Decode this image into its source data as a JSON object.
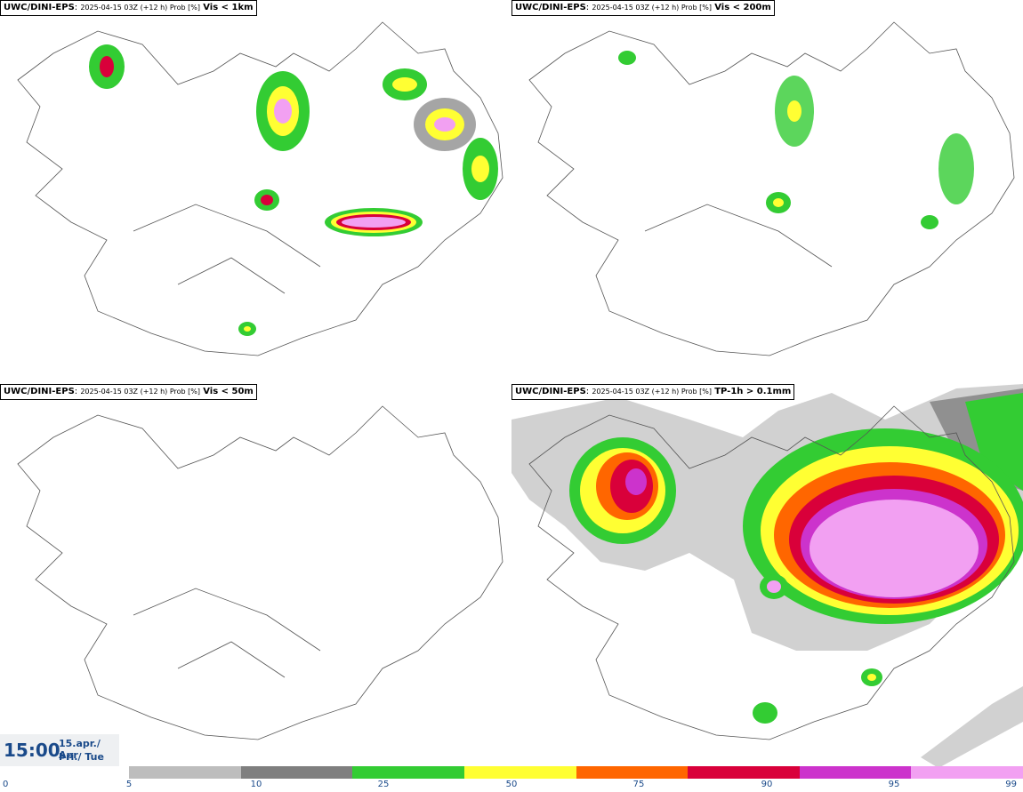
{
  "panels": [
    {
      "model": "UWC/DINI-EPS",
      "meta": "2025-04-15 03Z (+12 h) Prob [%]",
      "field": "Vis < 1km"
    },
    {
      "model": "UWC/DINI-EPS",
      "meta": "2025-04-15 03Z (+12 h) Prob [%]",
      "field": "Vis < 200m"
    },
    {
      "model": "UWC/DINI-EPS",
      "meta": "2025-04-15 03Z (+12 h) Prob [%]",
      "field": "Vis < 50m"
    },
    {
      "model": "UWC/DINI-EPS",
      "meta": "2025-04-15 03Z (+12 h) Prob [%]",
      "field": "TP-1h > 0.1mm"
    }
  ],
  "time": {
    "clock": "15:00",
    "date_line": "15.apr./ Apr",
    "day_line": "Þri./ Tue"
  },
  "colorbar": {
    "ticks": [
      "0",
      "5",
      "10",
      "25",
      "50",
      "75",
      "90",
      "95",
      "99"
    ],
    "colors": [
      "#bdbdbd",
      "#7f7f7f",
      "#33cc33",
      "#ffff33",
      "#ff6600",
      "#d9003a",
      "#cc33cc",
      "#f2a0f2"
    ]
  }
}
